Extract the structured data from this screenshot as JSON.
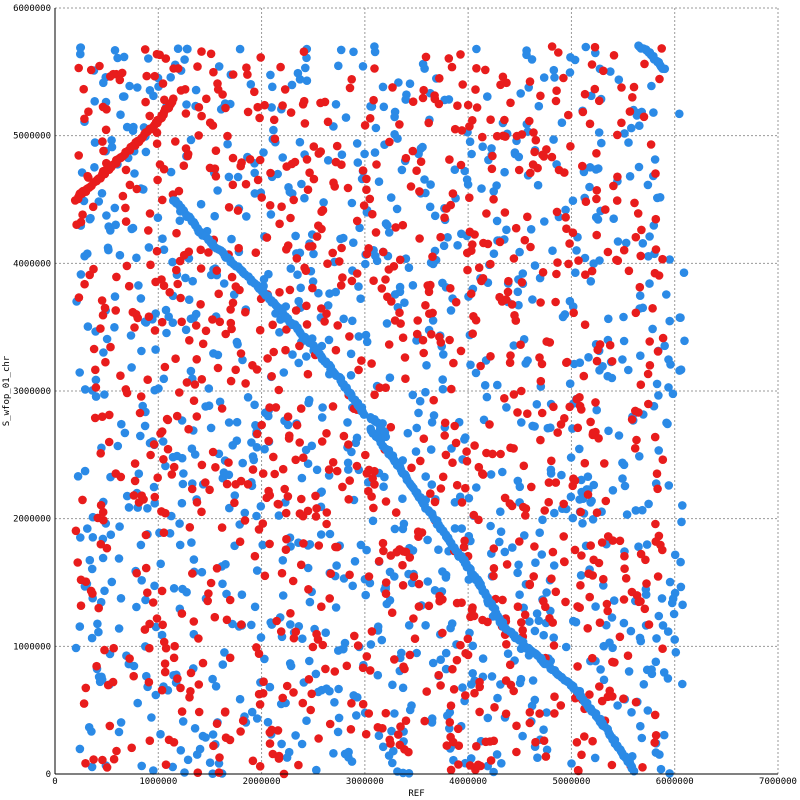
{
  "chart_data": {
    "type": "scatter",
    "title": "",
    "xlabel": "REF",
    "ylabel": "S_wfop_01_chr",
    "xlim": [
      0,
      7000000
    ],
    "ylim": [
      0,
      6000000
    ],
    "xticks": [
      0,
      1000000,
      2000000,
      3000000,
      4000000,
      5000000,
      6000000,
      7000000
    ],
    "yticks": [
      0,
      1000000,
      2000000,
      3000000,
      4000000,
      5000000,
      6000000
    ],
    "xtick_labels": [
      "0",
      "1000000",
      "2000000",
      "3000000",
      "4000000",
      "5000000",
      "6000000",
      "7000000"
    ],
    "ytick_labels": [
      "0",
      "1000000",
      "2000000",
      "3000000",
      "4000000",
      "5000000",
      "6000000"
    ],
    "grid": true,
    "legend": "none",
    "colors": {
      "forward": "#2b8ae6",
      "reverse": "#e81c1c",
      "grid": "#9a9a9a"
    },
    "series": [
      {
        "color": "#2b8ae6",
        "segments": [
          {
            "x": [
              1150000,
              1400000,
              1800000,
              2100000,
              2500000,
              2800000,
              3000000
            ],
            "y": [
              4500000,
              4250000,
              3950000,
              3700000,
              3350000,
              3050000,
              2820000
            ]
          },
          {
            "x": [
              3050000,
              3250000,
              3500000,
              3800000,
              4100000,
              4350000,
              4700000,
              5000000,
              5300000,
              5600000
            ],
            "y": [
              2700000,
              2500000,
              2200000,
              1850000,
              1500000,
              1150000,
              900000,
              700000,
              400000,
              30000
            ]
          },
          {
            "x": [
              5650000,
              5750000,
              5850000,
              5900000
            ],
            "y": [
              5700000,
              5650000,
              5570000,
              5520000
            ]
          },
          {
            "x": [
              3050000,
              3120000,
              3200000
            ],
            "y": [
              2800000,
              2750000,
              2650000
            ]
          }
        ],
        "scatter": {
          "count": 1150,
          "x_range": [
            200000,
            6100000
          ],
          "y_range": [
            0,
            5700000
          ],
          "seed": 7
        }
      },
      {
        "color": "#e81c1c",
        "segments": [
          {
            "x": [
              200000,
              400000,
              600000,
              800000,
              1000000,
              1150000
            ],
            "y": [
              4500000,
              4650000,
              4800000,
              4950000,
              5120000,
              5280000
            ]
          }
        ],
        "scatter": {
          "count": 1100,
          "x_range": [
            200000,
            5900000
          ],
          "y_range": [
            0,
            5700000
          ],
          "seed": 19
        }
      }
    ]
  }
}
